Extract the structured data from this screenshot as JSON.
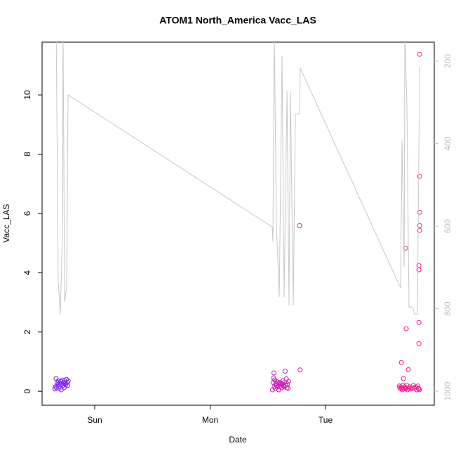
{
  "chart_data": {
    "type": "scatter",
    "title": "ATOM1 North_America Vacc_LAS",
    "x_label": "Date",
    "y_label": "Vacc_LAS",
    "xlim": [
      -0.456,
      2.942
    ],
    "xticks": [
      {
        "value": 0,
        "label": "Sun"
      },
      {
        "value": 1,
        "label": "Mon"
      },
      {
        "value": 2,
        "label": "Tue"
      }
    ],
    "ylim": [
      -0.47,
      11.78
    ],
    "yticks": [
      0,
      2,
      4,
      6,
      8,
      10
    ],
    "y2lim": [
      1034,
      154
    ],
    "y2ticks": [
      200,
      400,
      600,
      800,
      1000
    ],
    "grid": false,
    "series": [
      {
        "type": "scatter",
        "color_gradient": [
          "#7a22f2",
          "#ff1a8c"
        ],
        "x": [
          -0.345,
          -0.34,
          -0.335,
          -0.33,
          -0.325,
          -0.32,
          -0.315,
          -0.31,
          -0.305,
          -0.3,
          -0.295,
          -0.29,
          -0.285,
          -0.28,
          -0.275,
          -0.27,
          -0.265,
          -0.26,
          -0.255,
          -0.25,
          -0.245,
          -0.24,
          -0.235,
          -0.23,
          1.54,
          1.545,
          1.55,
          1.553,
          1.556,
          1.56,
          1.565,
          1.57,
          1.575,
          1.58,
          1.585,
          1.59,
          1.595,
          1.6,
          1.605,
          1.61,
          1.615,
          1.62,
          1.625,
          1.63,
          1.635,
          1.64,
          1.645,
          1.65,
          1.655,
          1.66,
          1.665,
          1.67,
          1.675,
          1.68,
          1.775,
          1.78,
          2.64,
          2.645,
          2.65,
          2.655,
          2.657,
          2.66,
          2.665,
          2.67,
          2.675,
          2.68,
          2.685,
          2.69,
          2.693,
          2.699,
          2.7,
          2.705,
          2.71,
          2.717,
          2.72,
          2.73,
          2.74,
          2.75,
          2.76,
          2.77,
          2.78,
          2.79,
          2.8,
          2.805,
          2.809,
          2.809,
          2.809,
          2.809,
          2.809,
          2.815,
          2.815,
          2.815,
          2.815,
          2.815,
          2.815
        ],
        "values": [
          0.08,
          0.15,
          0.43,
          0.12,
          0.3,
          0.22,
          0.35,
          0.1,
          0.28,
          0.18,
          0.33,
          0.05,
          0.25,
          0.38,
          0.2,
          0.3,
          0.12,
          0.35,
          0.27,
          0.22,
          0.4,
          0.3,
          0.2,
          0.35,
          0.05,
          0.3,
          0.45,
          0.62,
          0.15,
          0.38,
          0.1,
          0.25,
          0.2,
          0.32,
          0.15,
          0.28,
          0.05,
          0.22,
          0.3,
          0.18,
          0.27,
          0.12,
          0.25,
          0.35,
          0.2,
          0.15,
          0.3,
          0.68,
          0.2,
          0.42,
          0.12,
          0.25,
          0.1,
          0.33,
          5.59,
          0.72,
          0.18,
          0.1,
          0.15,
          0.08,
          0.97,
          0.12,
          0.05,
          0.2,
          0.43,
          0.1,
          0.15,
          0.08,
          4.83,
          2.11,
          0.12,
          0.2,
          0.05,
          0.73,
          0.1,
          0.15,
          0.08,
          0.12,
          0.2,
          0.1,
          0.15,
          0.05,
          0.18,
          0.1,
          4.24,
          4.1,
          2.32,
          1.61,
          0.08,
          7.25,
          6.04,
          5.59,
          5.43,
          11.37,
          0.05
        ]
      },
      {
        "type": "line",
        "axis": "y2",
        "color": "#c8c8c8",
        "x": [
          -0.334,
          -0.316,
          -0.298,
          -0.28,
          -0.274,
          -0.261,
          -0.243,
          -0.231,
          1.538,
          1.544,
          1.556,
          1.574,
          1.599,
          1.623,
          1.641,
          1.666,
          1.684,
          1.696,
          1.72,
          1.739,
          1.775,
          1.781,
          2.65,
          2.663,
          2.681,
          2.687,
          2.705,
          2.723,
          2.754,
          2.772,
          2.796,
          2.815
        ],
        "values": [
          120,
          733,
          813,
          614,
          120,
          784,
          750,
          282,
          602,
          639,
          130,
          597,
          772,
          188,
          772,
          273,
          792,
          273,
          792,
          328,
          328,
          217,
          750,
          392,
          699,
          130,
          307,
          796,
          796,
          813,
          813,
          214
        ]
      }
    ]
  }
}
